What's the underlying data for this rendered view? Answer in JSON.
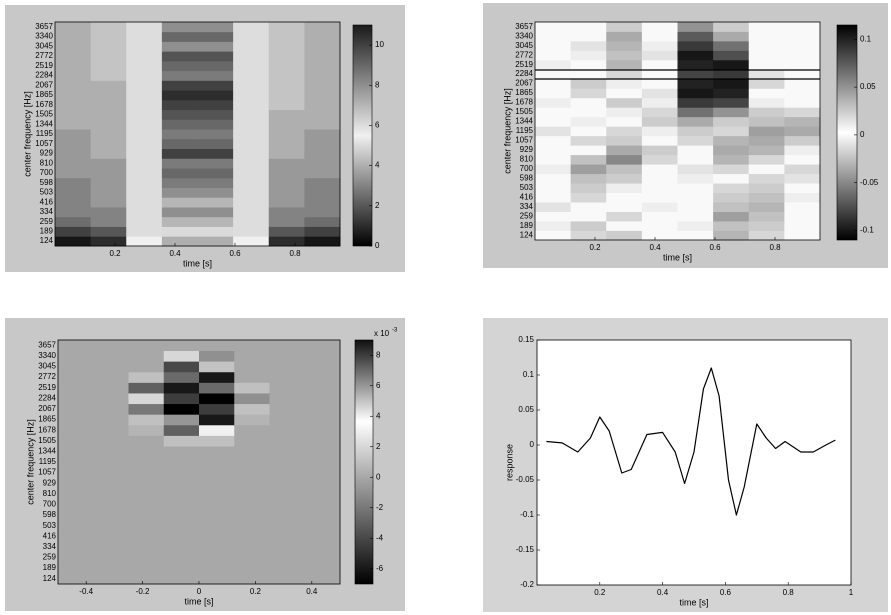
{
  "chart_data": [
    {
      "type": "heatmap",
      "xlabel": "time [s]",
      "ylabel": "center frequency [Hz]",
      "xlim": [
        0,
        0.95
      ],
      "xticks": [
        0.2,
        0.4,
        0.6,
        0.8
      ],
      "categories": [
        124,
        189,
        259,
        334,
        416,
        503,
        598,
        700,
        810,
        929,
        1057,
        1195,
        1344,
        1505,
        1678,
        1865,
        2067,
        2284,
        2519,
        2772,
        3045,
        3340,
        3657
      ],
      "clim": [
        0,
        11
      ],
      "cticks": [
        0,
        2,
        4,
        6,
        8,
        10
      ],
      "colormap": [
        "#000000",
        "#f0f0f0",
        "#1a1a1a"
      ],
      "values": [
        [
          0.5,
          1,
          5.5,
          4,
          4,
          5.5,
          1,
          0.5
        ],
        [
          1.5,
          2,
          6,
          5,
          5,
          6,
          2,
          1.5
        ],
        [
          2.5,
          3,
          6,
          7,
          7,
          6,
          3,
          2.5
        ],
        [
          3,
          3,
          6,
          8,
          8,
          6,
          3,
          3
        ],
        [
          3,
          3.5,
          6,
          7,
          7,
          6,
          3.5,
          3
        ],
        [
          3,
          3.5,
          6,
          8,
          8,
          6,
          3.5,
          3
        ],
        [
          3,
          3.5,
          6,
          8.5,
          8.5,
          6,
          3.5,
          3
        ],
        [
          3.5,
          3.5,
          6,
          9,
          9,
          6,
          3.5,
          3.5
        ],
        [
          3.5,
          3.5,
          6,
          8.5,
          8.5,
          6,
          3.5,
          3.5
        ],
        [
          3.5,
          4,
          6,
          10,
          10,
          6,
          4,
          3.5
        ],
        [
          3.5,
          4,
          6,
          9,
          9,
          6,
          4,
          3.5
        ],
        [
          3.5,
          4,
          6,
          8.5,
          8.5,
          6,
          4,
          3.5
        ],
        [
          4,
          4,
          6,
          9,
          9,
          6,
          4,
          4
        ],
        [
          4,
          4,
          6,
          9.5,
          9.5,
          6,
          4,
          4
        ],
        [
          4,
          4,
          6,
          10,
          10,
          6,
          4.5,
          4
        ],
        [
          4,
          4,
          6,
          10.5,
          10.5,
          6,
          4.5,
          4
        ],
        [
          4,
          4,
          6,
          10,
          10,
          6,
          4.5,
          4
        ],
        [
          4,
          4.5,
          6,
          8.5,
          8.5,
          6,
          4.5,
          4
        ],
        [
          4,
          4.5,
          6,
          9,
          9,
          6,
          4.5,
          4
        ],
        [
          4,
          4.5,
          6,
          9.5,
          9.5,
          6,
          4.5,
          4
        ],
        [
          4,
          4.5,
          6,
          8,
          8,
          6,
          4.5,
          4
        ],
        [
          4,
          4.5,
          6,
          9,
          9,
          6,
          4.5,
          4
        ],
        [
          4,
          4.5,
          6,
          8,
          8,
          6,
          4.5,
          4
        ]
      ]
    },
    {
      "type": "heatmap",
      "xlabel": "time [s]",
      "ylabel": "center frequency [Hz]",
      "xlim": [
        0,
        0.95
      ],
      "xticks": [
        0.2,
        0.4,
        0.6,
        0.8
      ],
      "categories": [
        124,
        189,
        259,
        334,
        416,
        503,
        598,
        700,
        810,
        929,
        1057,
        1195,
        1344,
        1505,
        1678,
        1865,
        2067,
        2284,
        2519,
        2772,
        3045,
        3340,
        3657
      ],
      "clim": [
        -0.11,
        0.115
      ],
      "cticks": [
        -0.1,
        -0.05,
        0,
        0.05,
        0.1
      ],
      "colormap": [
        "#000000",
        "#ffffff",
        "#000000"
      ],
      "values": [
        [
          0,
          0.02,
          -0.02,
          0,
          0,
          -0.03,
          0.02,
          0
        ],
        [
          0.01,
          -0.02,
          0,
          0,
          0.01,
          0.03,
          -0.02,
          0
        ],
        [
          0,
          0,
          0.02,
          0,
          0,
          -0.04,
          0.03,
          0
        ],
        [
          -0.01,
          0,
          0,
          0.01,
          0,
          0.03,
          -0.03,
          0
        ],
        [
          0,
          0.02,
          0,
          0,
          0,
          -0.02,
          0.03,
          0.01
        ],
        [
          0,
          -0.02,
          0.01,
          0,
          0,
          0.02,
          -0.02,
          0
        ],
        [
          0,
          0.03,
          -0.02,
          0,
          0.01,
          0,
          0.02,
          -0.01
        ],
        [
          0.01,
          -0.04,
          0.03,
          0,
          -0.01,
          0.02,
          0,
          0.02
        ],
        [
          0,
          0.03,
          -0.05,
          0.02,
          0,
          -0.03,
          0.02,
          0
        ],
        [
          0,
          0,
          0.04,
          -0.02,
          0,
          0.04,
          -0.03,
          0.01
        ],
        [
          0,
          0.02,
          -0.02,
          0,
          0.02,
          -0.03,
          0.04,
          -0.02
        ],
        [
          -0.01,
          0,
          0.02,
          0.01,
          -0.02,
          0.02,
          -0.04,
          0.04
        ],
        [
          0,
          0.01,
          0,
          -0.02,
          0.04,
          -0.02,
          0.03,
          -0.03
        ],
        [
          0,
          0,
          0.01,
          0.02,
          -0.06,
          0.05,
          -0.02,
          0.02
        ],
        [
          0.01,
          0,
          -0.02,
          0.01,
          0.09,
          -0.08,
          0.01,
          0
        ],
        [
          0,
          0.02,
          0,
          -0.01,
          -0.1,
          0.1,
          0,
          0
        ],
        [
          0,
          -0.02,
          0.01,
          0,
          0.1,
          -0.1,
          0.02,
          0
        ],
        [
          0,
          0,
          0.02,
          0,
          -0.08,
          0.09,
          -0.01,
          0
        ],
        [
          0.01,
          0,
          -0.03,
          0,
          0.1,
          -0.1,
          0,
          0
        ],
        [
          0,
          0.01,
          0.03,
          -0.01,
          -0.1,
          0.08,
          0,
          0
        ],
        [
          0,
          -0.01,
          -0.03,
          0.01,
          0.09,
          -0.06,
          0,
          0
        ],
        [
          0,
          0,
          0.04,
          0,
          -0.07,
          0.04,
          0,
          0
        ],
        [
          0,
          0,
          -0.02,
          0,
          0.05,
          -0.02,
          0,
          0
        ]
      ]
    },
    {
      "type": "heatmap",
      "xlabel": "time [s]",
      "ylabel": "center frequency [Hz]",
      "xlim": [
        -0.5,
        0.5
      ],
      "xticks": [
        -0.4,
        -0.2,
        0,
        0.2,
        0.4
      ],
      "categories": [
        124,
        189,
        259,
        334,
        416,
        503,
        598,
        700,
        810,
        929,
        1057,
        1195,
        1344,
        1505,
        1678,
        1865,
        2067,
        2284,
        2519,
        2772,
        3045,
        3340,
        3657
      ],
      "clim": [
        -7,
        9
      ],
      "cticks": [
        -6,
        -4,
        -2,
        0,
        2,
        4,
        6,
        8
      ],
      "colormap": [
        "#000000",
        "#808080",
        "#ffffff",
        "#101010"
      ],
      "colorbar_multiplier": "x 10",
      "colorbar_exponent": "-3",
      "values": [
        [
          0,
          0,
          0,
          0,
          0,
          0,
          0,
          0
        ],
        [
          0,
          0,
          0,
          0,
          0,
          0,
          0,
          0
        ],
        [
          0,
          0,
          0,
          0,
          0,
          0,
          0,
          0
        ],
        [
          0,
          0,
          0,
          0,
          0,
          0,
          0,
          0
        ],
        [
          0,
          0,
          0,
          0,
          0,
          0,
          0,
          0
        ],
        [
          0,
          0,
          0,
          0,
          0,
          0,
          0,
          0
        ],
        [
          0,
          0,
          0,
          0,
          0,
          0,
          0,
          0
        ],
        [
          0,
          0,
          0,
          0,
          0,
          0,
          0,
          0
        ],
        [
          0,
          0,
          0,
          0,
          0,
          0,
          0,
          0
        ],
        [
          0,
          0,
          0,
          0,
          0,
          0,
          0,
          0
        ],
        [
          0,
          0,
          0,
          0,
          0,
          0,
          0,
          0
        ],
        [
          0,
          0,
          0,
          0,
          0,
          0,
          0,
          0
        ],
        [
          0,
          0,
          0,
          0,
          0,
          0,
          0,
          0
        ],
        [
          0,
          0,
          0,
          1,
          1,
          0,
          0,
          0
        ],
        [
          0,
          0,
          0.5,
          -3,
          4,
          0,
          0,
          0
        ],
        [
          0,
          0,
          1,
          6,
          -6,
          0.5,
          0,
          0
        ],
        [
          0,
          0,
          -2,
          -7,
          8,
          1,
          0,
          0
        ],
        [
          0,
          0,
          2,
          8,
          -7,
          -1,
          0,
          0
        ],
        [
          0,
          0,
          -3,
          -6,
          7,
          1,
          0,
          0
        ],
        [
          0,
          0,
          1,
          7,
          -6,
          0,
          0,
          0
        ],
        [
          0,
          0,
          0,
          -4,
          5,
          0,
          0,
          0
        ],
        [
          0,
          0,
          0,
          2,
          -1,
          0,
          0,
          0
        ],
        [
          0,
          0,
          0,
          0,
          0,
          0,
          0,
          0
        ]
      ]
    },
    {
      "type": "line",
      "xlabel": "time [s]",
      "ylabel": "response",
      "color": "#000000",
      "xlim": [
        0,
        1
      ],
      "xticks": [
        0.2,
        0.4,
        0.6,
        0.8,
        1
      ],
      "ylim": [
        -0.2,
        0.15
      ],
      "yticks": [
        -0.2,
        -0.15,
        -0.1,
        -0.05,
        0,
        0.05,
        0.1,
        0.15
      ],
      "x": [
        0.03,
        0.08,
        0.13,
        0.17,
        0.2,
        0.23,
        0.27,
        0.3,
        0.35,
        0.4,
        0.44,
        0.47,
        0.5,
        0.53,
        0.555,
        0.58,
        0.61,
        0.635,
        0.66,
        0.7,
        0.73,
        0.76,
        0.79,
        0.84,
        0.88,
        0.92,
        0.95
      ],
      "values": [
        0.005,
        0.003,
        -0.01,
        0.01,
        0.04,
        0.02,
        -0.04,
        -0.035,
        0.015,
        0.018,
        -0.01,
        -0.055,
        -0.01,
        0.08,
        0.11,
        0.07,
        -0.05,
        -0.1,
        -0.06,
        0.03,
        0.01,
        -0.005,
        0.005,
        -0.01,
        -0.01,
        0,
        0.007
      ]
    }
  ]
}
